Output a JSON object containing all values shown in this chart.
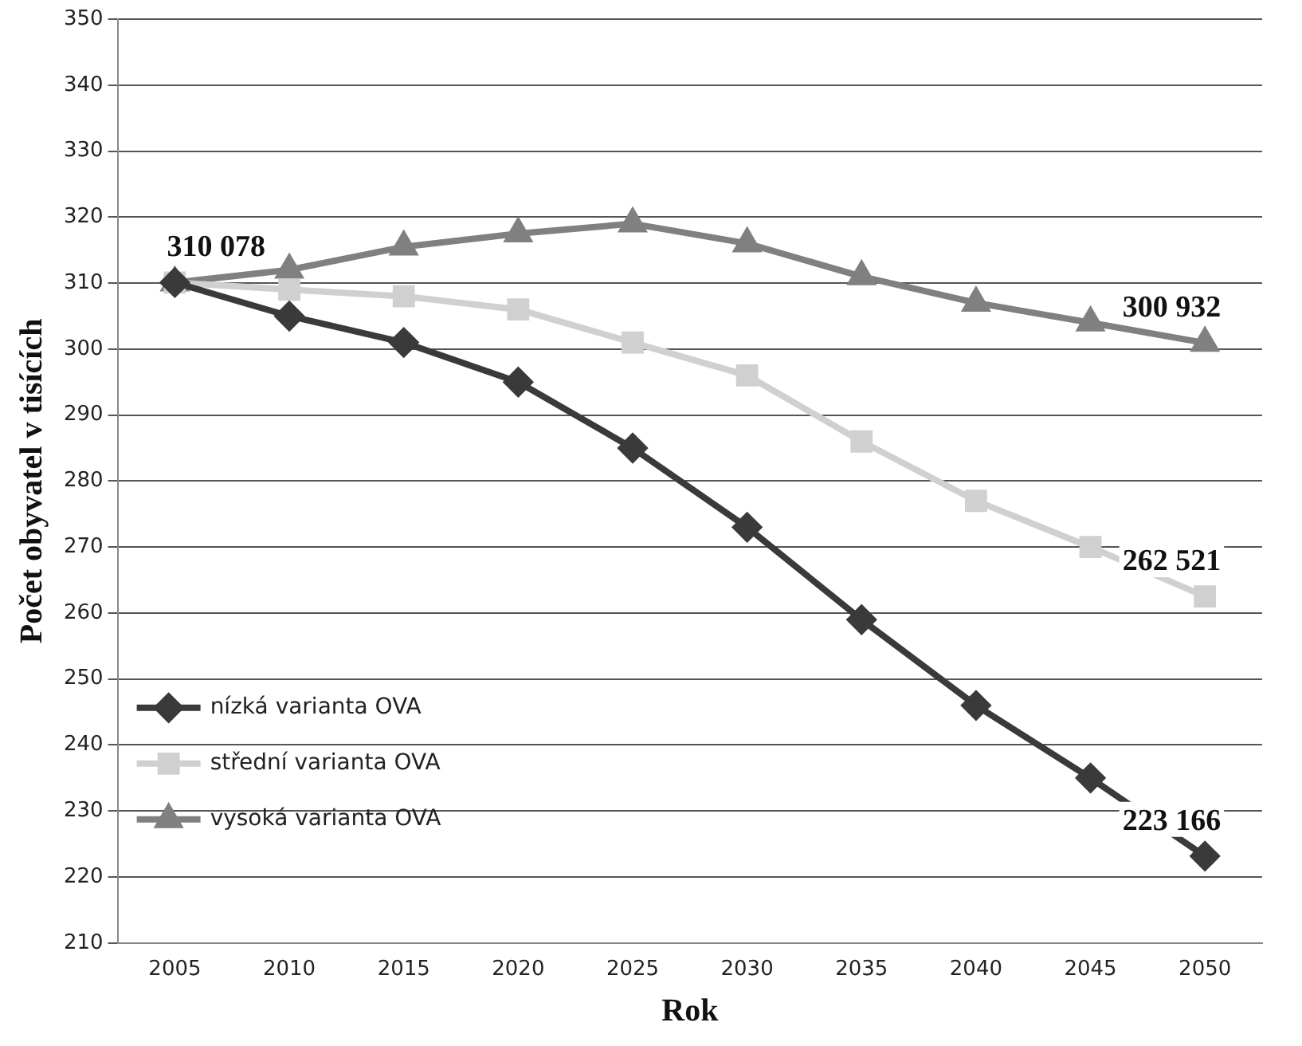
{
  "chart_data": {
    "type": "line",
    "xlabel": "Rok",
    "ylabel": "Počet obyvatel v tisících",
    "categories": [
      "2005",
      "2010",
      "2015",
      "2020",
      "2025",
      "2030",
      "2035",
      "2040",
      "2045",
      "2050"
    ],
    "series": [
      {
        "name": "nízká varianta OVA",
        "color": "#3a3a3a",
        "marker": "diamond",
        "values": [
          310.078,
          305,
          301,
          295,
          285,
          273,
          259,
          246,
          235,
          223.166
        ]
      },
      {
        "name": "střední varianta OVA",
        "color": "#d0d0d0",
        "marker": "square",
        "values": [
          310.078,
          309,
          308,
          306,
          301,
          296,
          286,
          277,
          270,
          262.521
        ]
      },
      {
        "name": "vysoká varianta OVA",
        "color": "#808080",
        "marker": "triangle",
        "values": [
          310.078,
          312,
          315.5,
          317.5,
          319,
          316,
          311,
          307,
          304,
          300.932
        ]
      }
    ],
    "ylim": [
      210,
      350
    ],
    "yticks": [
      210,
      220,
      230,
      240,
      250,
      260,
      270,
      280,
      290,
      300,
      310,
      320,
      330,
      340,
      350
    ],
    "grid": "y",
    "legend": "bottom left",
    "annotations": [
      {
        "text": "310 078",
        "x": "2005",
        "y": 310.078
      },
      {
        "text": "300 932",
        "x": "2050",
        "y": 300.932
      },
      {
        "text": "262 521",
        "x": "2050",
        "y": 262.521
      },
      {
        "text": "223 166",
        "x": "2050",
        "y": 223.166
      }
    ]
  }
}
